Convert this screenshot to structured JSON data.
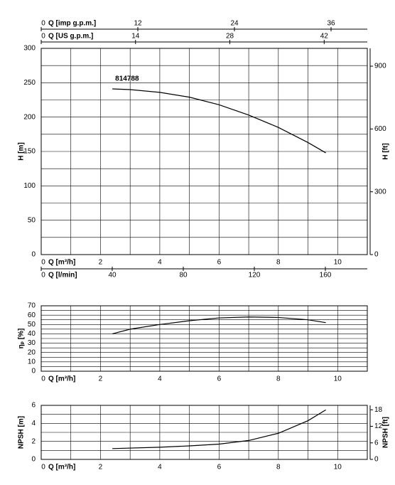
{
  "chart_data": [
    {
      "type": "line",
      "xlabel": "Q [m³/h]",
      "ylabel": "H [m]",
      "y2label": "H [ft]",
      "xlim": [
        0,
        11
      ],
      "xticks": [
        0,
        2,
        4,
        6,
        8,
        10
      ],
      "ylim": [
        0,
        300
      ],
      "yticks": [
        0,
        50,
        100,
        150,
        200,
        250,
        300
      ],
      "y2lim": [
        0,
        985
      ],
      "y2ticks": [
        0,
        300,
        600,
        900
      ],
      "grid": true,
      "secondary_x_axes": [
        {
          "label": "Q [imp g.p.m.]",
          "position": "top",
          "xlim": [
            0,
            40.5
          ],
          "xticks": [
            0,
            12,
            24,
            36
          ]
        },
        {
          "label": "Q [US g.p.m.]",
          "position": "top",
          "xlim": [
            0,
            48.4
          ],
          "xticks": [
            0,
            14,
            28,
            42
          ]
        },
        {
          "label": "Q [l/min]",
          "position": "bottom",
          "xlim": [
            0,
            183.6
          ],
          "xticks": [
            0,
            40,
            80,
            120,
            160
          ]
        }
      ],
      "series": [
        {
          "name": "814788",
          "color": "#000000",
          "x": [
            2.4,
            3,
            4,
            5,
            6,
            7,
            8,
            9,
            9.6
          ],
          "values": [
            241,
            240,
            236,
            229,
            218,
            203,
            185,
            163,
            148
          ]
        }
      ]
    },
    {
      "type": "line",
      "xlabel": "Q [m³/h]",
      "ylabel": "ηₚ [%]",
      "xlim": [
        0,
        11
      ],
      "xticks": [
        0,
        2,
        4,
        6,
        8,
        10
      ],
      "ylim": [
        0,
        70
      ],
      "yticks": [
        0,
        10,
        20,
        30,
        40,
        50,
        60,
        70
      ],
      "grid": true,
      "series": [
        {
          "color": "#000000",
          "x": [
            2.4,
            3,
            4,
            5,
            6,
            7,
            8,
            9,
            9.6
          ],
          "values": [
            40,
            45,
            50,
            54,
            57,
            58,
            57.5,
            55,
            52
          ]
        }
      ]
    },
    {
      "type": "line",
      "xlabel": "Q [m³/h]",
      "ylabel": "NPSH [m]",
      "y2label": "NPSH [ft]",
      "xlim": [
        0,
        11
      ],
      "xticks": [
        0,
        2,
        4,
        6,
        8,
        10
      ],
      "ylim": [
        0,
        6
      ],
      "yticks": [
        0,
        2,
        4,
        6
      ],
      "y2lim": [
        0,
        19.6
      ],
      "y2ticks": [
        0,
        6,
        12,
        18
      ],
      "grid": true,
      "series": [
        {
          "color": "#000000",
          "x": [
            2.4,
            4,
            5,
            6,
            7,
            8,
            9,
            9.6
          ],
          "values": [
            1.2,
            1.35,
            1.5,
            1.7,
            2.1,
            2.9,
            4.3,
            5.5
          ]
        }
      ]
    }
  ]
}
